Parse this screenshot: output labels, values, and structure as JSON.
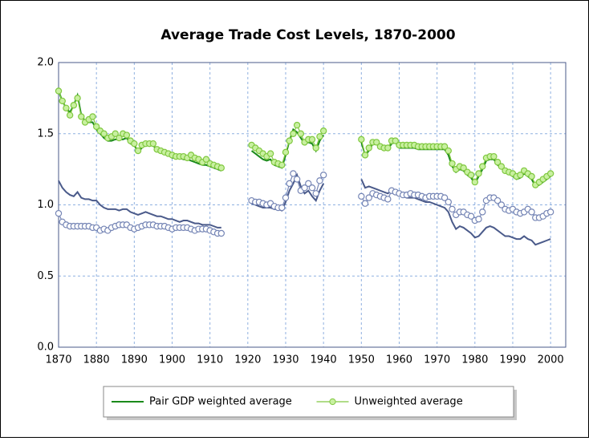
{
  "chart_data": {
    "type": "line",
    "title": "Average Trade Cost Levels, 1870-2000",
    "x": [
      1870,
      1871,
      1872,
      1873,
      1874,
      1875,
      1876,
      1877,
      1878,
      1879,
      1880,
      1881,
      1882,
      1883,
      1884,
      1885,
      1886,
      1887,
      1888,
      1889,
      1890,
      1891,
      1892,
      1893,
      1894,
      1895,
      1896,
      1897,
      1898,
      1899,
      1900,
      1901,
      1902,
      1903,
      1904,
      1905,
      1906,
      1907,
      1908,
      1909,
      1910,
      1911,
      1912,
      1913,
      1914,
      1915,
      1916,
      1917,
      1918,
      1919,
      1920,
      1921,
      1922,
      1923,
      1924,
      1925,
      1926,
      1927,
      1928,
      1929,
      1930,
      1931,
      1932,
      1933,
      1934,
      1935,
      1936,
      1937,
      1938,
      1939,
      1940,
      1941,
      1942,
      1943,
      1944,
      1945,
      1946,
      1947,
      1948,
      1949,
      1950,
      1951,
      1952,
      1953,
      1954,
      1955,
      1956,
      1957,
      1958,
      1959,
      1960,
      1961,
      1962,
      1963,
      1964,
      1965,
      1966,
      1967,
      1968,
      1969,
      1970,
      1971,
      1972,
      1973,
      1974,
      1975,
      1976,
      1977,
      1978,
      1979,
      1980,
      1981,
      1982,
      1983,
      1984,
      1985,
      1986,
      1987,
      1988,
      1989,
      1990,
      1991,
      1992,
      1993,
      1994,
      1995,
      1996,
      1997,
      1998,
      1999,
      2000
    ],
    "series": [
      {
        "color": "#4a5a8a",
        "markers": false,
        "values": [
          1.17,
          1.12,
          1.09,
          1.07,
          1.06,
          1.09,
          1.05,
          1.04,
          1.04,
          1.03,
          1.03,
          1.0,
          0.98,
          0.97,
          0.97,
          0.97,
          0.96,
          0.97,
          0.97,
          0.95,
          0.94,
          0.93,
          0.94,
          0.95,
          0.94,
          0.93,
          0.92,
          0.92,
          0.91,
          0.9,
          0.9,
          0.89,
          0.88,
          0.89,
          0.89,
          0.88,
          0.87,
          0.87,
          0.86,
          0.86,
          0.86,
          0.85,
          0.84,
          0.84,
          null,
          null,
          null,
          null,
          null,
          null,
          null,
          1.01,
          1.0,
          0.99,
          0.98,
          0.98,
          0.98,
          0.97,
          0.97,
          0.96,
          1.02,
          1.1,
          1.15,
          1.21,
          1.13,
          1.08,
          1.1,
          1.06,
          1.03,
          1.1,
          1.15,
          null,
          null,
          null,
          null,
          null,
          null,
          null,
          null,
          null,
          1.18,
          1.12,
          1.13,
          1.12,
          1.11,
          1.1,
          1.09,
          1.08,
          1.1,
          1.09,
          1.07,
          1.06,
          1.05,
          1.05,
          1.05,
          1.04,
          1.03,
          1.02,
          1.02,
          1.01,
          1.0,
          0.99,
          0.98,
          0.95,
          0.88,
          0.83,
          0.85,
          0.84,
          0.82,
          0.8,
          0.77,
          0.78,
          0.81,
          0.84,
          0.85,
          0.84,
          0.82,
          0.8,
          0.78,
          0.78,
          0.77,
          0.76,
          0.76,
          0.78,
          0.76,
          0.75,
          0.72,
          0.73,
          0.74,
          0.75,
          0.76
        ]
      },
      {
        "color": "#7585b5",
        "markers": true,
        "values": [
          0.94,
          0.88,
          0.86,
          0.85,
          0.85,
          0.85,
          0.85,
          0.85,
          0.85,
          0.84,
          0.84,
          0.82,
          0.83,
          0.82,
          0.84,
          0.85,
          0.86,
          0.86,
          0.86,
          0.84,
          0.83,
          0.84,
          0.85,
          0.86,
          0.86,
          0.86,
          0.85,
          0.85,
          0.85,
          0.84,
          0.83,
          0.84,
          0.84,
          0.84,
          0.84,
          0.83,
          0.82,
          0.83,
          0.83,
          0.83,
          0.82,
          0.81,
          0.8,
          0.8,
          null,
          null,
          null,
          null,
          null,
          null,
          null,
          1.03,
          1.02,
          1.02,
          1.01,
          1.0,
          1.01,
          0.99,
          0.98,
          0.98,
          1.05,
          1.15,
          1.22,
          1.18,
          1.1,
          1.12,
          1.15,
          1.12,
          1.08,
          1.17,
          1.21,
          null,
          null,
          null,
          null,
          null,
          null,
          null,
          null,
          null,
          1.06,
          1.01,
          1.05,
          1.08,
          1.07,
          1.06,
          1.05,
          1.04,
          1.1,
          1.09,
          1.08,
          1.07,
          1.07,
          1.08,
          1.07,
          1.07,
          1.06,
          1.05,
          1.06,
          1.06,
          1.06,
          1.06,
          1.05,
          1.02,
          0.97,
          0.93,
          0.95,
          0.95,
          0.93,
          0.92,
          0.89,
          0.9,
          0.95,
          1.03,
          1.05,
          1.05,
          1.03,
          1.0,
          0.97,
          0.96,
          0.97,
          0.95,
          0.94,
          0.95,
          0.97,
          0.95,
          0.91,
          0.91,
          0.92,
          0.94,
          0.95
        ]
      },
      {
        "name": "Pair GDP weighted average",
        "color": "#1a8a1a",
        "markers": false,
        "values": [
          1.8,
          1.73,
          1.68,
          1.65,
          1.7,
          1.77,
          1.63,
          1.59,
          1.58,
          1.58,
          1.53,
          1.5,
          1.47,
          1.45,
          1.45,
          1.46,
          1.46,
          1.46,
          1.47,
          1.43,
          1.42,
          1.37,
          1.4,
          1.42,
          1.42,
          1.42,
          1.38,
          1.37,
          1.36,
          1.35,
          1.33,
          1.33,
          1.33,
          1.32,
          1.32,
          1.31,
          1.3,
          1.29,
          1.28,
          1.28,
          1.27,
          1.26,
          1.25,
          1.24,
          null,
          null,
          null,
          null,
          null,
          null,
          null,
          1.38,
          1.36,
          1.34,
          1.32,
          1.31,
          1.32,
          1.28,
          1.27,
          1.26,
          1.35,
          1.45,
          1.53,
          1.51,
          1.47,
          1.43,
          1.44,
          1.43,
          1.38,
          1.45,
          1.49,
          null,
          null,
          null,
          null,
          null,
          null,
          null,
          null,
          null,
          1.44,
          1.35,
          1.38,
          1.43,
          1.43,
          1.4,
          1.39,
          1.39,
          1.43,
          1.44,
          1.4,
          1.4,
          1.4,
          1.4,
          1.4,
          1.39,
          1.39,
          1.39,
          1.39,
          1.39,
          1.39,
          1.39,
          1.39,
          1.35,
          1.27,
          1.23,
          1.25,
          1.24,
          1.21,
          1.19,
          1.15,
          1.2,
          1.25,
          1.31,
          1.32,
          1.32,
          1.28,
          1.26,
          1.23,
          1.22,
          1.2,
          1.18,
          1.19,
          1.22,
          1.2,
          1.18,
          1.13,
          1.14,
          1.16,
          1.18,
          1.2
        ]
      },
      {
        "name": "Unweighted average",
        "color": "#80c840",
        "markers": true,
        "values": [
          1.8,
          1.73,
          1.68,
          1.63,
          1.7,
          1.75,
          1.62,
          1.58,
          1.6,
          1.62,
          1.55,
          1.52,
          1.5,
          1.47,
          1.48,
          1.5,
          1.47,
          1.5,
          1.49,
          1.45,
          1.43,
          1.38,
          1.42,
          1.43,
          1.43,
          1.43,
          1.39,
          1.38,
          1.37,
          1.36,
          1.35,
          1.34,
          1.34,
          1.34,
          1.33,
          1.35,
          1.33,
          1.32,
          1.3,
          1.32,
          1.29,
          1.28,
          1.27,
          1.26,
          null,
          null,
          null,
          null,
          null,
          null,
          null,
          1.42,
          1.4,
          1.38,
          1.36,
          1.34,
          1.36,
          1.3,
          1.29,
          1.28,
          1.37,
          1.45,
          1.5,
          1.56,
          1.5,
          1.44,
          1.46,
          1.46,
          1.4,
          1.48,
          1.52,
          null,
          null,
          null,
          null,
          null,
          null,
          null,
          null,
          null,
          1.46,
          1.35,
          1.4,
          1.44,
          1.44,
          1.41,
          1.4,
          1.4,
          1.45,
          1.45,
          1.42,
          1.42,
          1.42,
          1.42,
          1.42,
          1.41,
          1.41,
          1.41,
          1.41,
          1.41,
          1.41,
          1.41,
          1.41,
          1.38,
          1.29,
          1.25,
          1.27,
          1.26,
          1.23,
          1.21,
          1.16,
          1.22,
          1.27,
          1.33,
          1.34,
          1.34,
          1.3,
          1.27,
          1.24,
          1.23,
          1.22,
          1.2,
          1.21,
          1.24,
          1.22,
          1.2,
          1.14,
          1.16,
          1.18,
          1.2,
          1.22
        ]
      }
    ],
    "xlim": [
      1870,
      2004
    ],
    "xticks": [
      1870,
      1880,
      1890,
      1900,
      1910,
      1920,
      1930,
      1940,
      1950,
      1960,
      1970,
      1980,
      1990,
      2000
    ],
    "ylim": [
      0,
      2
    ],
    "yticks": [
      {
        "value": 0,
        "label": "0.0"
      },
      0.5,
      {
        "value": 1,
        "label": "1.0"
      },
      1.5,
      {
        "value": 2,
        "label": "2.0"
      }
    ],
    "grid": true,
    "legend": "bottom"
  }
}
